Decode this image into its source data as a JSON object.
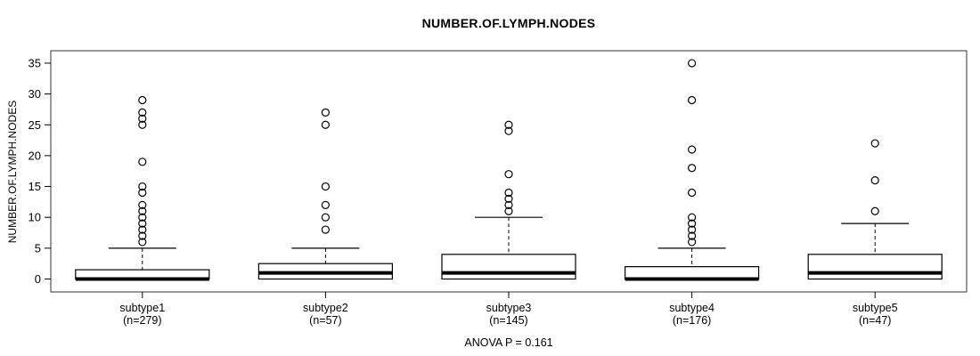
{
  "title": "NUMBER.OF.LYMPH.NODES",
  "y_axis": {
    "label": "NUMBER.OF.LYMPH.NODES",
    "ticks": [
      0,
      5,
      10,
      15,
      20,
      25,
      30,
      35
    ]
  },
  "footer": {
    "anova_text": "ANOVA P = 0.161"
  },
  "chart_data": {
    "type": "boxplot",
    "title": "NUMBER.OF.LYMPH.NODES",
    "ylabel": "NUMBER.OF.LYMPH.NODES",
    "xlabel": "",
    "ylim": [
      -2,
      37
    ],
    "yticks": [
      0,
      5,
      10,
      15,
      20,
      25,
      30,
      35
    ],
    "grid": false,
    "annotation": "ANOVA P = 0.161",
    "style": {
      "box_fill": "#ffffff",
      "stroke": "#000000",
      "frame": "#333333"
    },
    "groups": [
      {
        "label": "subtype1",
        "sublabel": "(n=279)",
        "n": 279,
        "q1": 0,
        "median": 0,
        "q3": 1.5,
        "whisker_low": 0,
        "whisker_high": 5,
        "outliers": [
          6,
          7,
          8,
          9,
          10,
          11,
          12,
          14,
          15,
          19,
          25,
          26,
          27,
          29
        ]
      },
      {
        "label": "subtype2",
        "sublabel": "(n=57)",
        "n": 57,
        "q1": 0,
        "median": 1,
        "q3": 2.5,
        "whisker_low": 0,
        "whisker_high": 5,
        "outliers": [
          8,
          10,
          12,
          15,
          25,
          27
        ]
      },
      {
        "label": "subtype3",
        "sublabel": "(n=145)",
        "n": 145,
        "q1": 0,
        "median": 1,
        "q3": 4,
        "whisker_low": 0,
        "whisker_high": 10,
        "outliers": [
          11,
          12,
          13,
          14,
          17,
          24,
          25
        ]
      },
      {
        "label": "subtype4",
        "sublabel": "(n=176)",
        "n": 176,
        "q1": 0,
        "median": 0,
        "q3": 2,
        "whisker_low": 0,
        "whisker_high": 5,
        "outliers": [
          6,
          7,
          8,
          9,
          10,
          14,
          18,
          21,
          29,
          35
        ]
      },
      {
        "label": "subtype5",
        "sublabel": "(n=47)",
        "n": 47,
        "q1": 0,
        "median": 1,
        "q3": 4,
        "whisker_low": 0,
        "whisker_high": 9,
        "outliers": [
          11,
          16,
          22
        ]
      }
    ]
  }
}
